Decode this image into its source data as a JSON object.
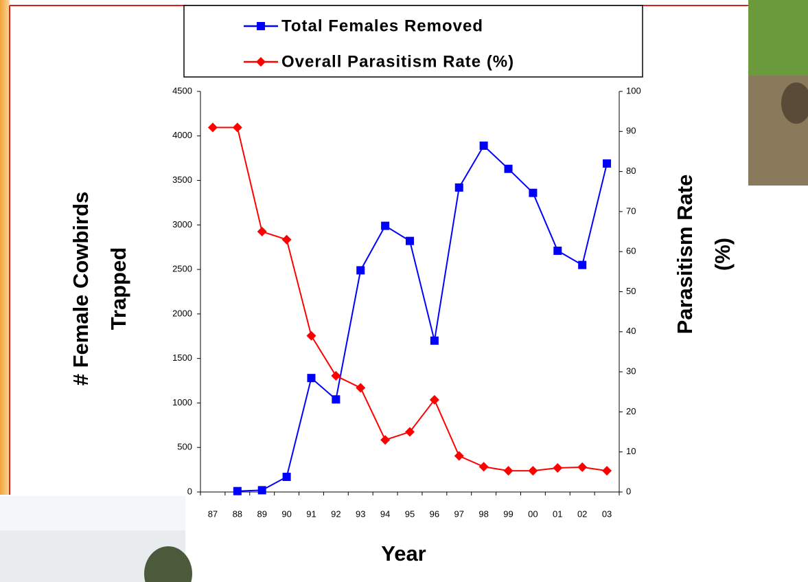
{
  "chart_data": {
    "type": "line",
    "ylabel": [
      "# Female Cowbirds",
      "Trapped"
    ],
    "y2label": [
      "Parasitism Rate",
      "(%)"
    ],
    "xlabel": "Year",
    "categories": [
      "87",
      "88",
      "89",
      "90",
      "91",
      "92",
      "93",
      "94",
      "95",
      "96",
      "97",
      "98",
      "99",
      "00",
      "01",
      "02",
      "03"
    ],
    "series": [
      {
        "name": "Total Females Removed",
        "color": "#0000ff",
        "marker": "square",
        "axis": "y",
        "values": [
          null,
          10,
          20,
          170,
          1280,
          1040,
          2490,
          2990,
          2820,
          1700,
          3420,
          3890,
          3630,
          3360,
          2710,
          2550,
          3690
        ]
      },
      {
        "name": "Overall Parasitism Rate (%)",
        "color": "#ff0000",
        "marker": "diamond",
        "axis": "y2",
        "values": [
          91,
          91,
          65,
          63,
          39,
          29,
          26,
          13,
          15,
          23,
          9,
          6.3,
          5.3,
          5.3,
          6,
          6.2,
          5.3
        ]
      }
    ],
    "ylim": [
      0,
      4500
    ],
    "yticks": [
      0,
      500,
      1000,
      1500,
      2000,
      2500,
      3000,
      3500,
      4000,
      4500
    ],
    "y2lim": [
      0,
      100
    ],
    "y2ticks": [
      0,
      10,
      20,
      30,
      40,
      50,
      60,
      70,
      80,
      90,
      100
    ],
    "legend": "top"
  }
}
